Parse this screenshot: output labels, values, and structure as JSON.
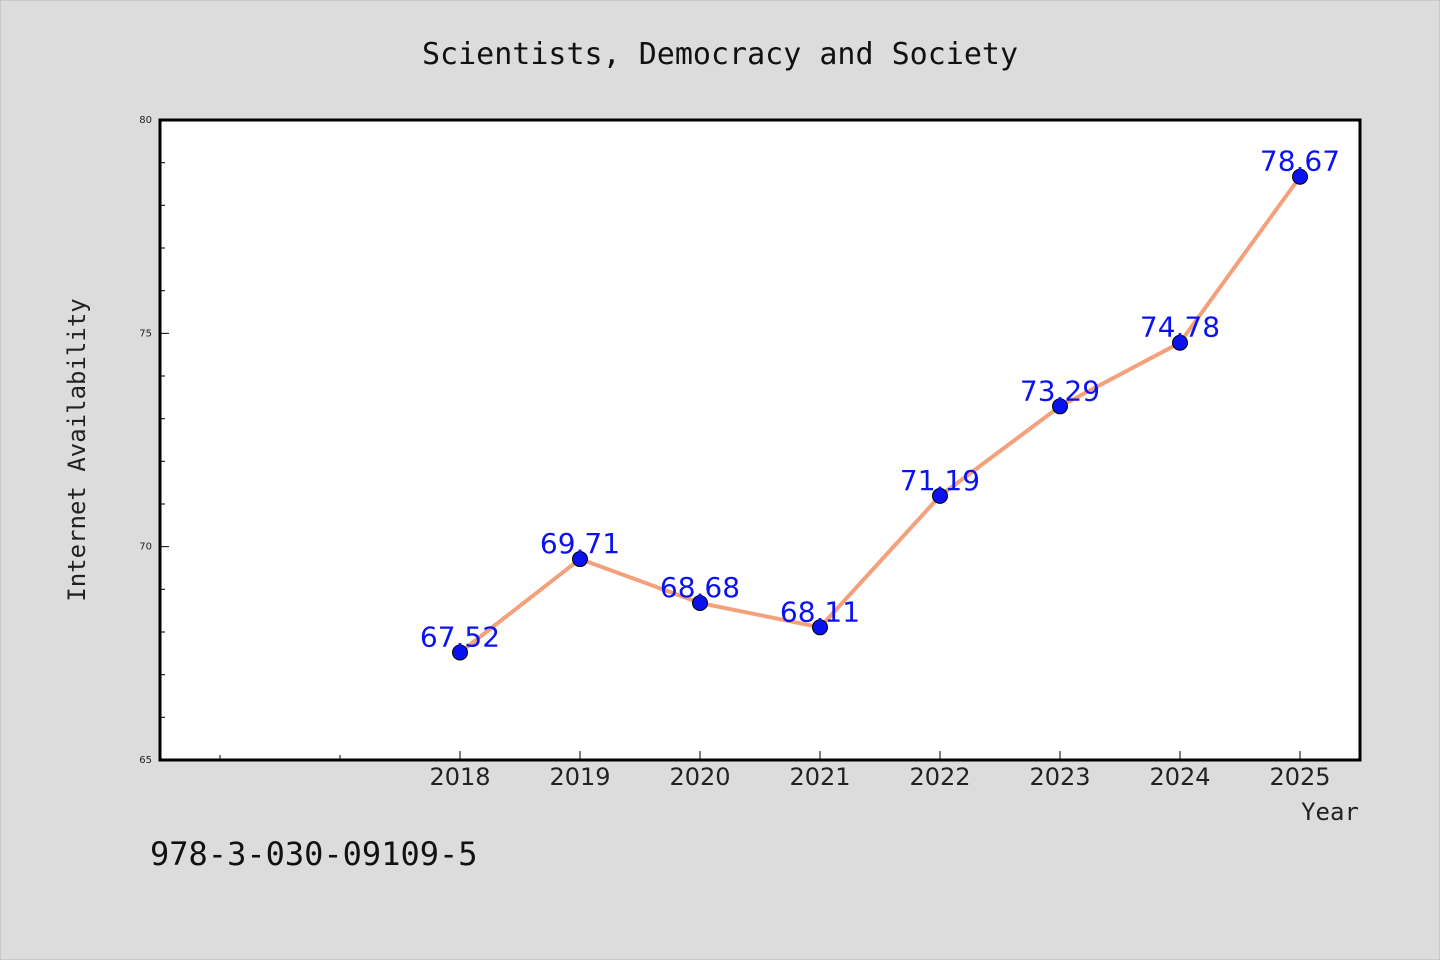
{
  "chart_data": {
    "type": "line",
    "title": "Scientists, Democracy and Society",
    "xlabel": "Year",
    "ylabel": "Internet Availability",
    "categories": [
      "2018",
      "2019",
      "2020",
      "2021",
      "2022",
      "2023",
      "2024",
      "2025"
    ],
    "values": [
      67.52,
      69.71,
      68.68,
      68.11,
      71.19,
      73.29,
      74.78,
      78.67
    ],
    "data_labels": [
      "67.52",
      "69.71",
      "68.68",
      "68.11",
      "71.19",
      "73.29",
      "74.78",
      "78.67"
    ],
    "ylim": [
      65,
      80
    ],
    "yticks": [
      "65",
      "70",
      "75",
      "80"
    ],
    "grid": false,
    "legend": "none",
    "line_color": "#f4a07a",
    "marker_color": "#0a12f0",
    "label_color": "#0a12f0",
    "plot_background": "#ffffff",
    "page_background": "#dcdcdc"
  },
  "footer": {
    "isbn": "978-3-030-09109-5"
  }
}
